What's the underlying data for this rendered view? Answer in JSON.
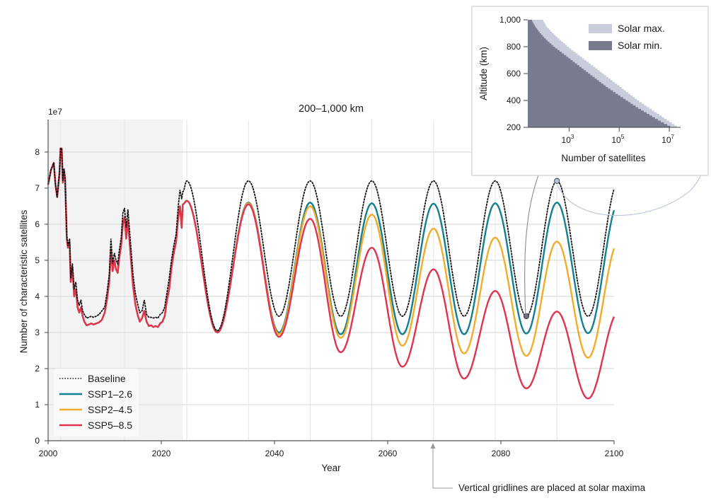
{
  "chart_data": [
    {
      "type": "line",
      "title": "200–1,000 km",
      "xlabel": "Year",
      "ylabel": "Number of characteristic satellites",
      "y_scale_label": "1e7",
      "y_unit_multiplier": 10000000,
      "xlim": [
        2000,
        2100
      ],
      "ylim": [
        0,
        8.9
      ],
      "xticks": [
        2000,
        2020,
        2040,
        2060,
        2080,
        2100
      ],
      "yticks": [
        0,
        1,
        2,
        3,
        4,
        5,
        6,
        7,
        8
      ],
      "grid": true,
      "vertical_gridlines_at_solar_maxima": [
        2002.2,
        2013.5,
        2024.5,
        2035.4,
        2046.3,
        2057.2,
        2068.1,
        2079.0,
        2089.9
      ],
      "historical_shaded_region": [
        2000,
        2023.8
      ],
      "legend_position": "bottom-left",
      "annotation": "Vertical gridlines are placed at solar maxima",
      "historical": {
        "x": [
          2000.0,
          2000.5,
          2001.0,
          2001.3,
          2001.6,
          2002.0,
          2002.2,
          2002.4,
          2002.6,
          2002.8,
          2003.0,
          2003.3,
          2003.5,
          2003.8,
          2004.0,
          2004.3,
          2004.6,
          2004.9,
          2005.2,
          2005.5,
          2005.8,
          2006.1,
          2006.4,
          2006.8,
          2007.2,
          2007.6,
          2008.0,
          2008.5,
          2009.0,
          2009.5,
          2010.0,
          2010.4,
          2010.8,
          2011.1,
          2011.4,
          2011.7,
          2012.0,
          2012.3,
          2012.6,
          2012.9,
          2013.2,
          2013.5,
          2013.8,
          2014.1,
          2014.4,
          2014.7,
          2015.0,
          2015.4,
          2015.8,
          2016.2,
          2016.6,
          2017.0,
          2017.4,
          2017.8,
          2018.2,
          2018.6,
          2019.0,
          2019.4,
          2019.8,
          2020.2,
          2020.6,
          2021.0,
          2021.4,
          2021.8,
          2022.2,
          2022.6,
          2023.0,
          2023.3,
          2023.6,
          2023.8
        ],
        "baseline": [
          7.1,
          7.5,
          7.7,
          7.1,
          6.75,
          7.4,
          8.1,
          8.1,
          7.2,
          7.55,
          7.3,
          5.7,
          5.4,
          5.6,
          4.5,
          4.9,
          4.2,
          4.4,
          3.9,
          3.75,
          3.9,
          3.6,
          3.5,
          3.4,
          3.42,
          3.45,
          3.42,
          3.45,
          3.5,
          3.6,
          3.7,
          4.1,
          4.6,
          5.6,
          4.9,
          5.2,
          5.0,
          4.9,
          5.3,
          5.6,
          6.3,
          6.45,
          5.9,
          6.4,
          5.8,
          5.2,
          4.6,
          4.1,
          3.8,
          3.55,
          3.6,
          3.9,
          3.5,
          3.42,
          3.42,
          3.4,
          3.42,
          3.4,
          3.5,
          3.55,
          3.7,
          4.1,
          4.5,
          5.0,
          5.4,
          5.7,
          6.5,
          6.95,
          6.7,
          6.9
        ],
        "ssp": [
          7.1,
          7.5,
          7.7,
          7.1,
          6.75,
          7.4,
          8.1,
          8.1,
          7.15,
          7.5,
          7.25,
          5.6,
          5.35,
          5.5,
          4.4,
          4.8,
          4.0,
          4.2,
          3.7,
          3.55,
          3.7,
          3.45,
          3.3,
          3.2,
          3.22,
          3.25,
          3.22,
          3.25,
          3.28,
          3.35,
          3.55,
          3.9,
          4.4,
          5.3,
          4.7,
          5.0,
          4.75,
          4.65,
          5.1,
          5.4,
          6.0,
          6.2,
          5.6,
          6.1,
          5.5,
          4.9,
          4.3,
          3.8,
          3.5,
          3.3,
          3.4,
          3.6,
          3.3,
          3.18,
          3.2,
          3.15,
          3.18,
          3.15,
          3.25,
          3.3,
          3.45,
          3.9,
          4.2,
          4.8,
          5.2,
          5.5,
          6.2,
          6.5,
          5.9,
          6.55
        ]
      },
      "series": [
        {
          "name": "Baseline",
          "color": "#111111",
          "style": "dotted",
          "peaks": [
            [
              2024.5,
              7.2
            ],
            [
              2035.4,
              7.2
            ],
            [
              2046.3,
              7.2
            ],
            [
              2057.2,
              7.2
            ],
            [
              2068.1,
              7.2
            ],
            [
              2079.0,
              7.2
            ],
            [
              2089.9,
              7.2
            ]
          ],
          "troughs": [
            [
              2029.9,
              3.05
            ],
            [
              2040.8,
              3.45
            ],
            [
              2051.7,
              3.45
            ],
            [
              2062.6,
              3.45
            ],
            [
              2073.5,
              3.45
            ],
            [
              2084.5,
              3.45
            ],
            [
              2095.4,
              3.45
            ]
          ],
          "end": [
            2100,
            6.95
          ]
        },
        {
          "name": "SSP1–2.6",
          "color": "#13808f",
          "style": "solid",
          "peaks": [
            [
              2024.5,
              6.65
            ],
            [
              2035.4,
              6.6
            ],
            [
              2046.3,
              6.6
            ],
            [
              2057.2,
              6.58
            ],
            [
              2068.1,
              6.57
            ],
            [
              2079.0,
              6.58
            ],
            [
              2089.9,
              6.6
            ]
          ],
          "troughs": [
            [
              2029.9,
              3.02
            ],
            [
              2040.8,
              3.0
            ],
            [
              2051.7,
              2.95
            ],
            [
              2062.6,
              2.95
            ],
            [
              2073.5,
              2.95
            ],
            [
              2084.5,
              2.97
            ],
            [
              2095.4,
              2.98
            ]
          ],
          "end": [
            2100,
            6.35
          ]
        },
        {
          "name": "SSP2–4.5",
          "color": "#f2ac2a",
          "style": "solid",
          "peaks": [
            [
              2024.5,
              6.65
            ],
            [
              2035.4,
              6.58
            ],
            [
              2046.3,
              6.5
            ],
            [
              2057.2,
              6.27
            ],
            [
              2068.1,
              5.88
            ],
            [
              2079.0,
              5.63
            ],
            [
              2089.9,
              5.52
            ]
          ],
          "troughs": [
            [
              2029.9,
              3.0
            ],
            [
              2040.8,
              2.95
            ],
            [
              2051.7,
              2.85
            ],
            [
              2062.6,
              2.63
            ],
            [
              2073.5,
              2.42
            ],
            [
              2084.5,
              2.35
            ],
            [
              2095.4,
              2.3
            ]
          ],
          "end": [
            2100,
            5.2
          ]
        },
        {
          "name": "SSP5–8.5",
          "color": "#e0334f",
          "style": "solid",
          "peaks": [
            [
              2024.5,
              6.65
            ],
            [
              2035.4,
              6.55
            ],
            [
              2046.3,
              6.15
            ],
            [
              2057.2,
              5.35
            ],
            [
              2068.1,
              4.75
            ],
            [
              2079.0,
              4.15
            ],
            [
              2089.9,
              3.58
            ]
          ],
          "troughs": [
            [
              2029.9,
              3.0
            ],
            [
              2040.8,
              2.88
            ],
            [
              2051.7,
              2.45
            ],
            [
              2062.6,
              2.05
            ],
            [
              2073.5,
              1.72
            ],
            [
              2084.5,
              1.45
            ],
            [
              2095.4,
              1.17
            ]
          ],
          "end": [
            2100,
            2.85
          ]
        }
      ],
      "markers": [
        {
          "name": "solar-min-marker",
          "x": 2084.5,
          "y": 3.45,
          "color": "#6b6e80"
        },
        {
          "name": "solar-max-marker",
          "x": 2089.9,
          "y": 7.2,
          "color": "#b8c4d4"
        }
      ]
    },
    {
      "type": "area",
      "title": "",
      "xlabel": "Number of satellites",
      "ylabel": "Altitude (km)",
      "x_scale": "log",
      "xlim_log10": [
        1.35,
        7.45
      ],
      "ylim": [
        200,
        1000
      ],
      "xticks": [
        "10^3",
        "10^5",
        "10^7"
      ],
      "xticks_log10": [
        3,
        5,
        7
      ],
      "yticks": [
        "200",
        "400",
        "600",
        "800",
        "1,000"
      ],
      "ytick_values": [
        200,
        400,
        600,
        800,
        1000
      ],
      "legend_position": "top-right",
      "series": [
        {
          "name": "Solar max.",
          "color": "#c9ccdb",
          "altitude": [
            1000,
            950,
            900,
            850,
            800,
            750,
            700,
            650,
            600,
            550,
            500,
            450,
            400,
            350,
            300,
            250,
            200
          ],
          "log10_count": [
            1.95,
            2.1,
            2.35,
            2.65,
            2.95,
            3.3,
            3.65,
            4.0,
            4.35,
            4.7,
            5.05,
            5.4,
            5.75,
            6.15,
            6.55,
            6.95,
            7.35
          ]
        },
        {
          "name": "Solar min.",
          "color": "#787b8e",
          "altitude": [
            1000,
            950,
            900,
            850,
            800,
            750,
            700,
            650,
            600,
            550,
            500,
            450,
            400,
            350,
            300,
            250,
            200
          ],
          "log10_count": [
            1.5,
            1.65,
            1.85,
            2.1,
            2.4,
            2.75,
            3.1,
            3.45,
            3.8,
            4.15,
            4.5,
            4.9,
            5.3,
            5.7,
            6.15,
            6.6,
            7.1
          ]
        }
      ]
    }
  ]
}
